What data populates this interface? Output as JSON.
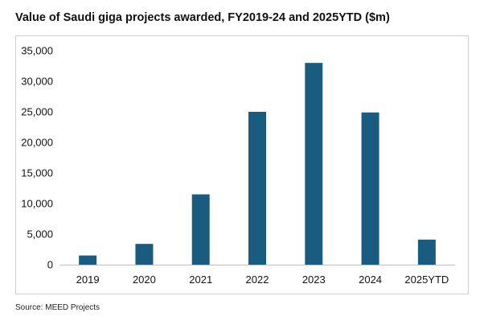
{
  "title": "Value of Saudi giga projects awarded, FY2019-24 and 2025YTD ($m)",
  "source": "Source: MEED Projects",
  "chart_data": {
    "type": "bar",
    "categories": [
      "2019",
      "2020",
      "2021",
      "2022",
      "2023",
      "2024",
      "2025YTD"
    ],
    "values": [
      1500,
      3400,
      11500,
      25000,
      33000,
      24900,
      4100
    ],
    "ylim": [
      0,
      35000
    ],
    "yticks": [
      "0",
      "5,000",
      "10,000",
      "15,000",
      "20,000",
      "25,000",
      "30,000",
      "35,000"
    ],
    "grid": false,
    "bar_color": "#1a5c80"
  }
}
